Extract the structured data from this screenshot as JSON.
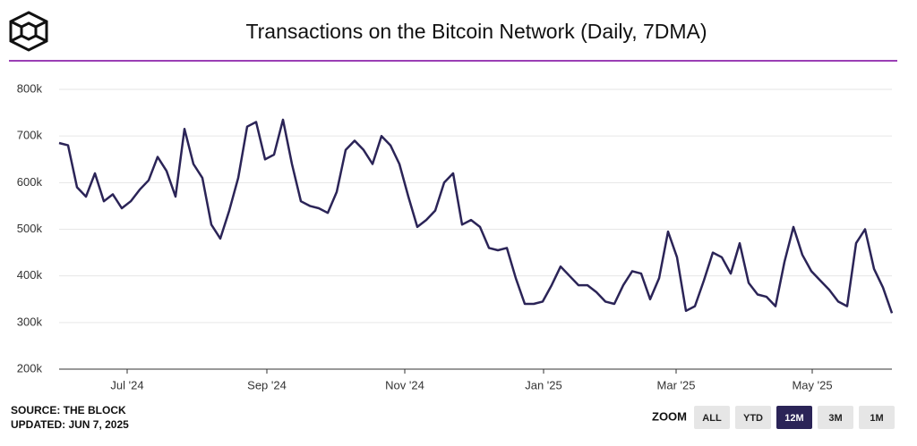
{
  "chart_data": {
    "type": "line",
    "title": "Transactions on the Bitcoin Network (Daily, 7DMA)",
    "source": "SOURCE: THE BLOCK",
    "updated": "UPDATED: JUN 7, 2025",
    "zoom": {
      "label": "ZOOM",
      "buttons": [
        "ALL",
        "YTD",
        "12M",
        "3M",
        "1M"
      ],
      "active": 2
    },
    "color": "#2b2457",
    "grid": true,
    "xlim": [
      0,
      93
    ],
    "xticks": [
      {
        "value": 7.6,
        "label": "Jul '24"
      },
      {
        "value": 23.2,
        "label": "Sep '24"
      },
      {
        "value": 38.6,
        "label": "Nov '24"
      },
      {
        "value": 54.1,
        "label": "Jan '25"
      },
      {
        "value": 68.9,
        "label": "Mar '25"
      },
      {
        "value": 84.1,
        "label": "May '25"
      }
    ],
    "ylim": [
      200000,
      800000
    ],
    "yticks": [
      {
        "value": 200000,
        "label": "200k"
      },
      {
        "value": 300000,
        "label": "300k"
      },
      {
        "value": 400000,
        "label": "400k"
      },
      {
        "value": 500000,
        "label": "500k"
      },
      {
        "value": 600000,
        "label": "600k"
      },
      {
        "value": 700000,
        "label": "700k"
      },
      {
        "value": 800000,
        "label": "800k"
      }
    ],
    "values": [
      685000,
      680000,
      590000,
      570000,
      620000,
      560000,
      575000,
      545000,
      560000,
      585000,
      605000,
      655000,
      625000,
      570000,
      715000,
      640000,
      610000,
      510000,
      480000,
      540000,
      610000,
      720000,
      730000,
      650000,
      660000,
      735000,
      640000,
      560000,
      550000,
      545000,
      535000,
      580000,
      670000,
      690000,
      670000,
      640000,
      700000,
      680000,
      640000,
      570000,
      505000,
      520000,
      540000,
      600000,
      620000,
      510000,
      520000,
      505000,
      460000,
      455000,
      460000,
      395000,
      340000,
      340000,
      345000,
      380000,
      420000,
      400000,
      380000,
      380000,
      365000,
      345000,
      340000,
      380000,
      410000,
      405000,
      350000,
      395000,
      495000,
      440000,
      325000,
      335000,
      390000,
      450000,
      440000,
      405000,
      470000,
      385000,
      360000,
      355000,
      335000,
      430000,
      505000,
      445000,
      410000,
      390000,
      370000,
      345000,
      335000,
      470000,
      500000,
      415000,
      375000,
      320000
    ]
  }
}
